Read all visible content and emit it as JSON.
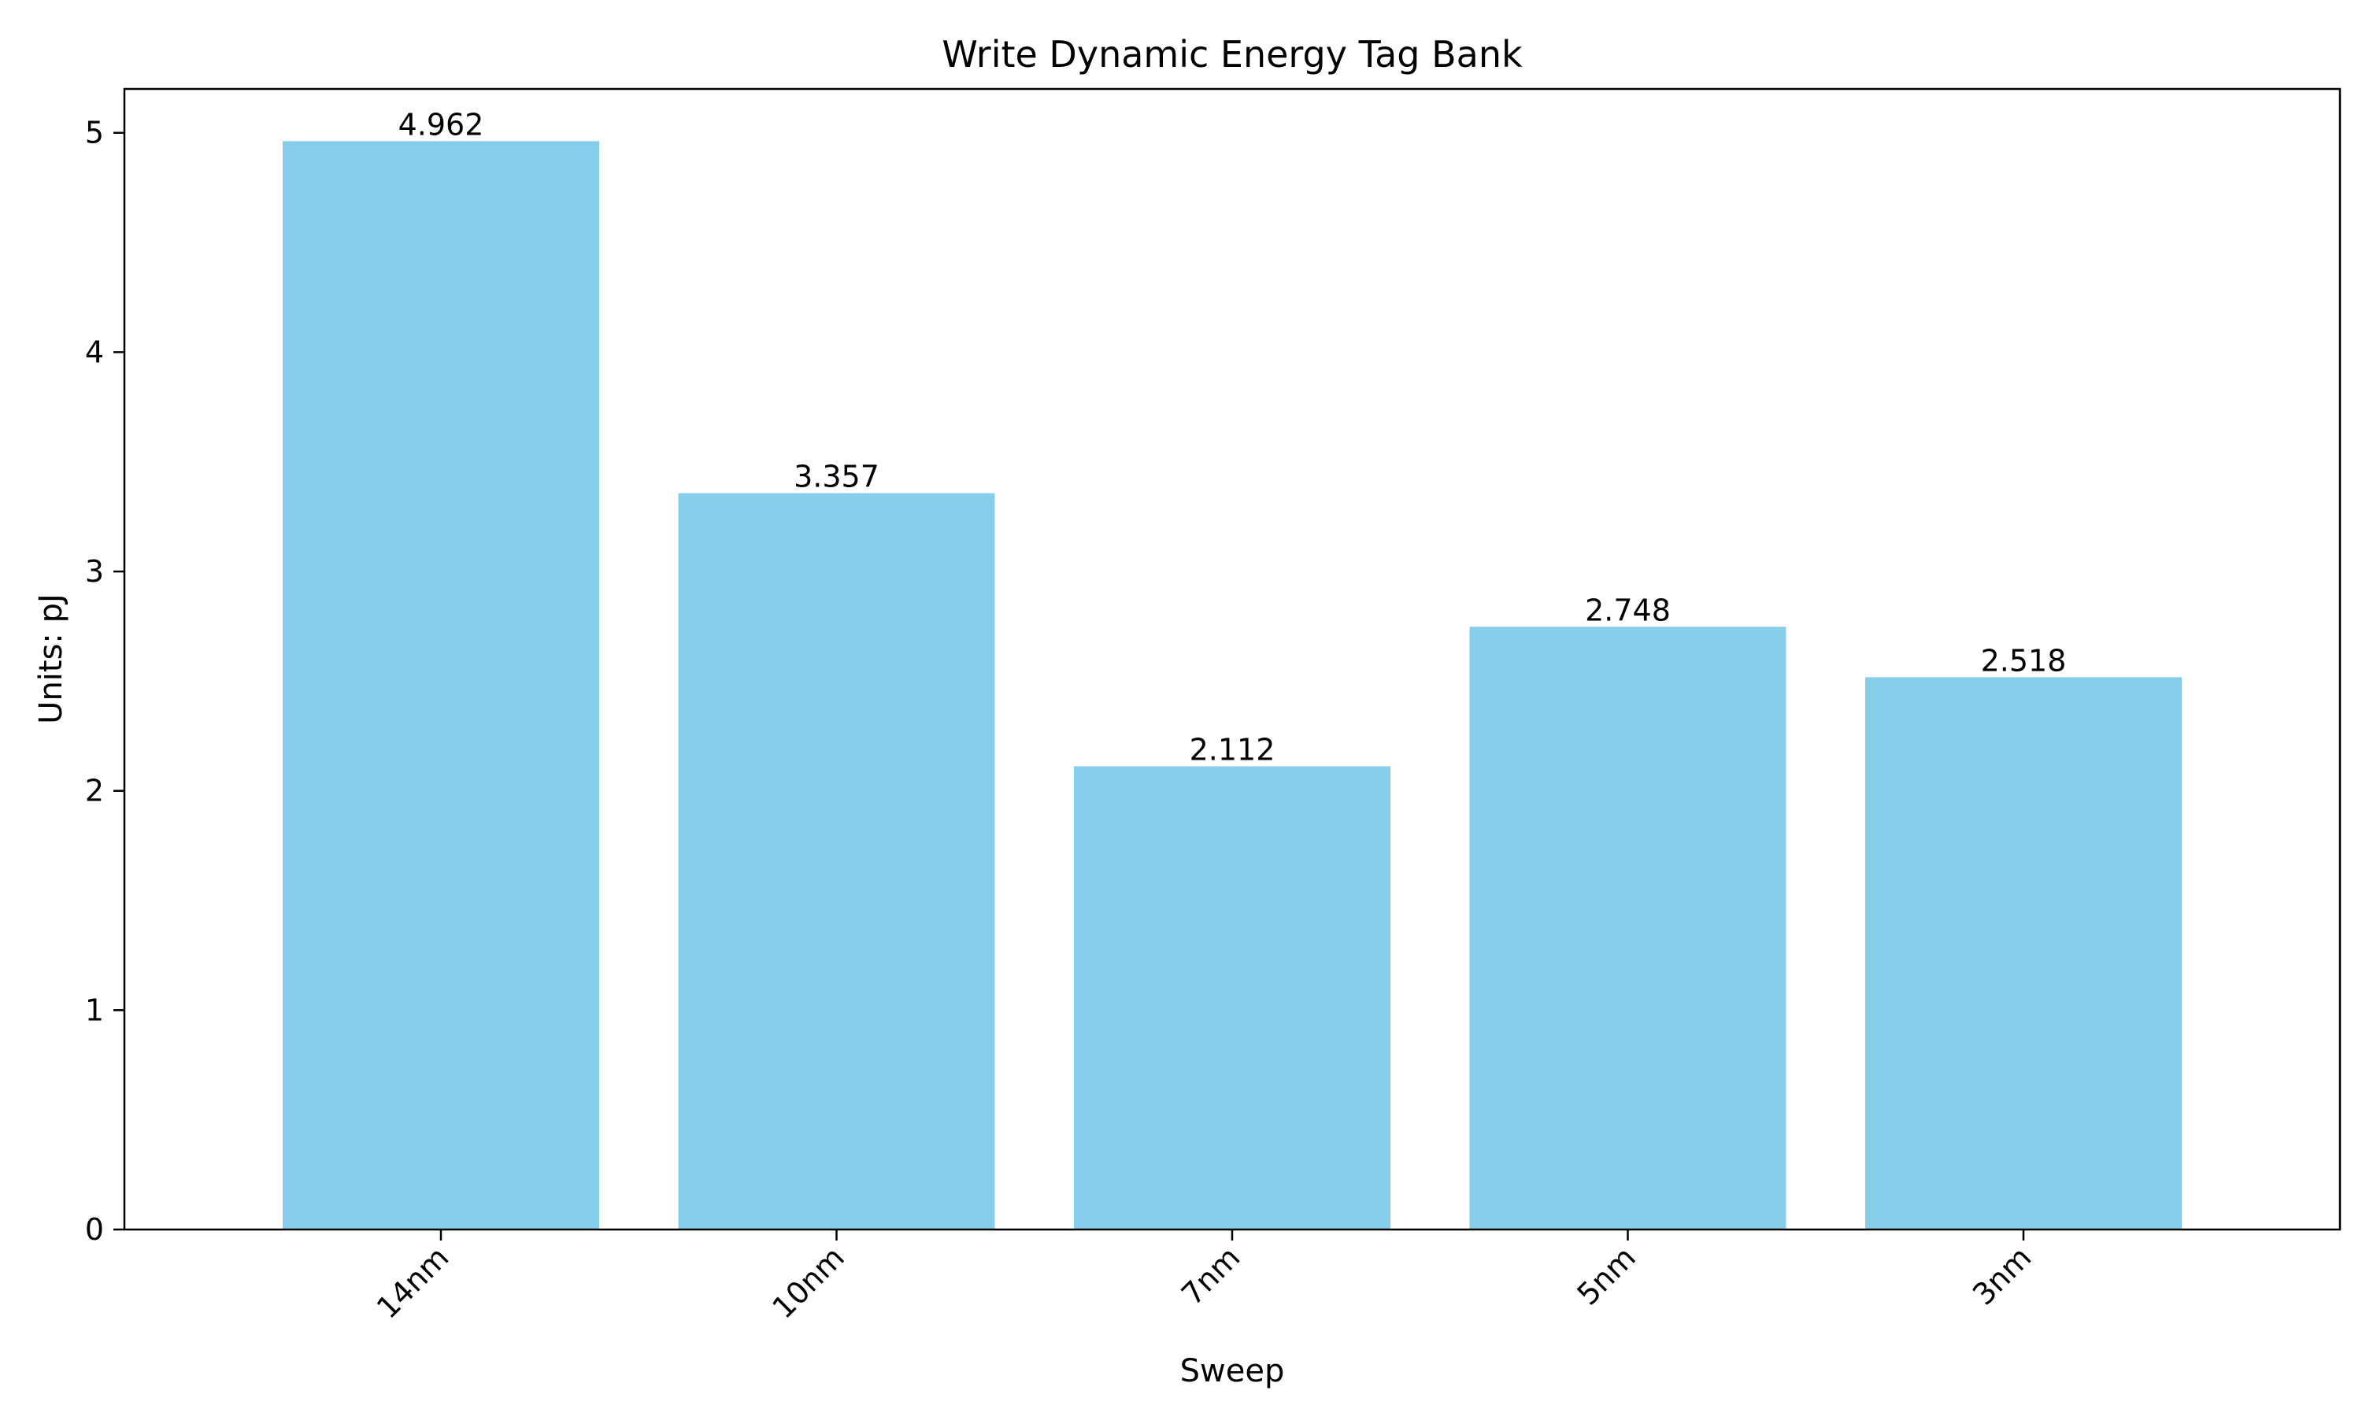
{
  "chart_data": {
    "type": "bar",
    "title": "Write Dynamic Energy Tag Bank",
    "xlabel": "Sweep",
    "ylabel": "Units: pJ",
    "categories": [
      "14nm",
      "10nm",
      "7nm",
      "5nm",
      "3nm"
    ],
    "values": [
      4.962,
      3.357,
      2.112,
      2.748,
      2.518
    ],
    "value_labels": [
      "4.962",
      "3.357",
      "2.112",
      "2.748",
      "2.518"
    ],
    "ylim": [
      0,
      5.2
    ],
    "yticks": [
      0,
      1,
      2,
      3,
      4,
      5
    ],
    "ytick_labels": [
      "0",
      "1",
      "2",
      "3",
      "4",
      "5"
    ],
    "bar_color": "#87CEEB",
    "grid": false,
    "legend": "none",
    "xtick_rotation": "45"
  }
}
